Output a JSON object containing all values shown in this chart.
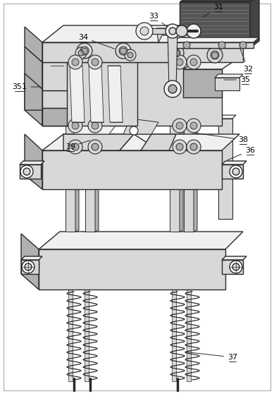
{
  "background_color": "#ffffff",
  "line_color": "#2a2a2a",
  "light_fill": "#f0f0f0",
  "mid_fill": "#d8d8d8",
  "dark_fill": "#b0b0b0",
  "motor_dark": "#3a3a3a",
  "motor_mid": "#555555",
  "annotations": [
    [
      "31",
      [
        0.735,
        0.955
      ],
      [
        0.795,
        0.963
      ]
    ],
    [
      "32",
      [
        0.695,
        0.778
      ],
      [
        0.82,
        0.745
      ]
    ],
    [
      "33",
      [
        0.43,
        0.88
      ],
      [
        0.4,
        0.916
      ]
    ],
    [
      "34",
      [
        0.245,
        0.82
      ],
      [
        0.175,
        0.8
      ]
    ],
    [
      "35",
      [
        0.71,
        0.64
      ],
      [
        0.8,
        0.618
      ]
    ],
    [
      "351",
      [
        0.115,
        0.635
      ],
      [
        0.068,
        0.618
      ]
    ],
    [
      "36",
      [
        0.735,
        0.415
      ],
      [
        0.795,
        0.405
      ]
    ],
    [
      "37",
      [
        0.64,
        0.118
      ],
      [
        0.735,
        0.108
      ]
    ],
    [
      "38",
      [
        0.715,
        0.498
      ],
      [
        0.785,
        0.487
      ]
    ],
    [
      "39",
      [
        0.215,
        0.565
      ],
      [
        0.165,
        0.537
      ]
    ]
  ]
}
